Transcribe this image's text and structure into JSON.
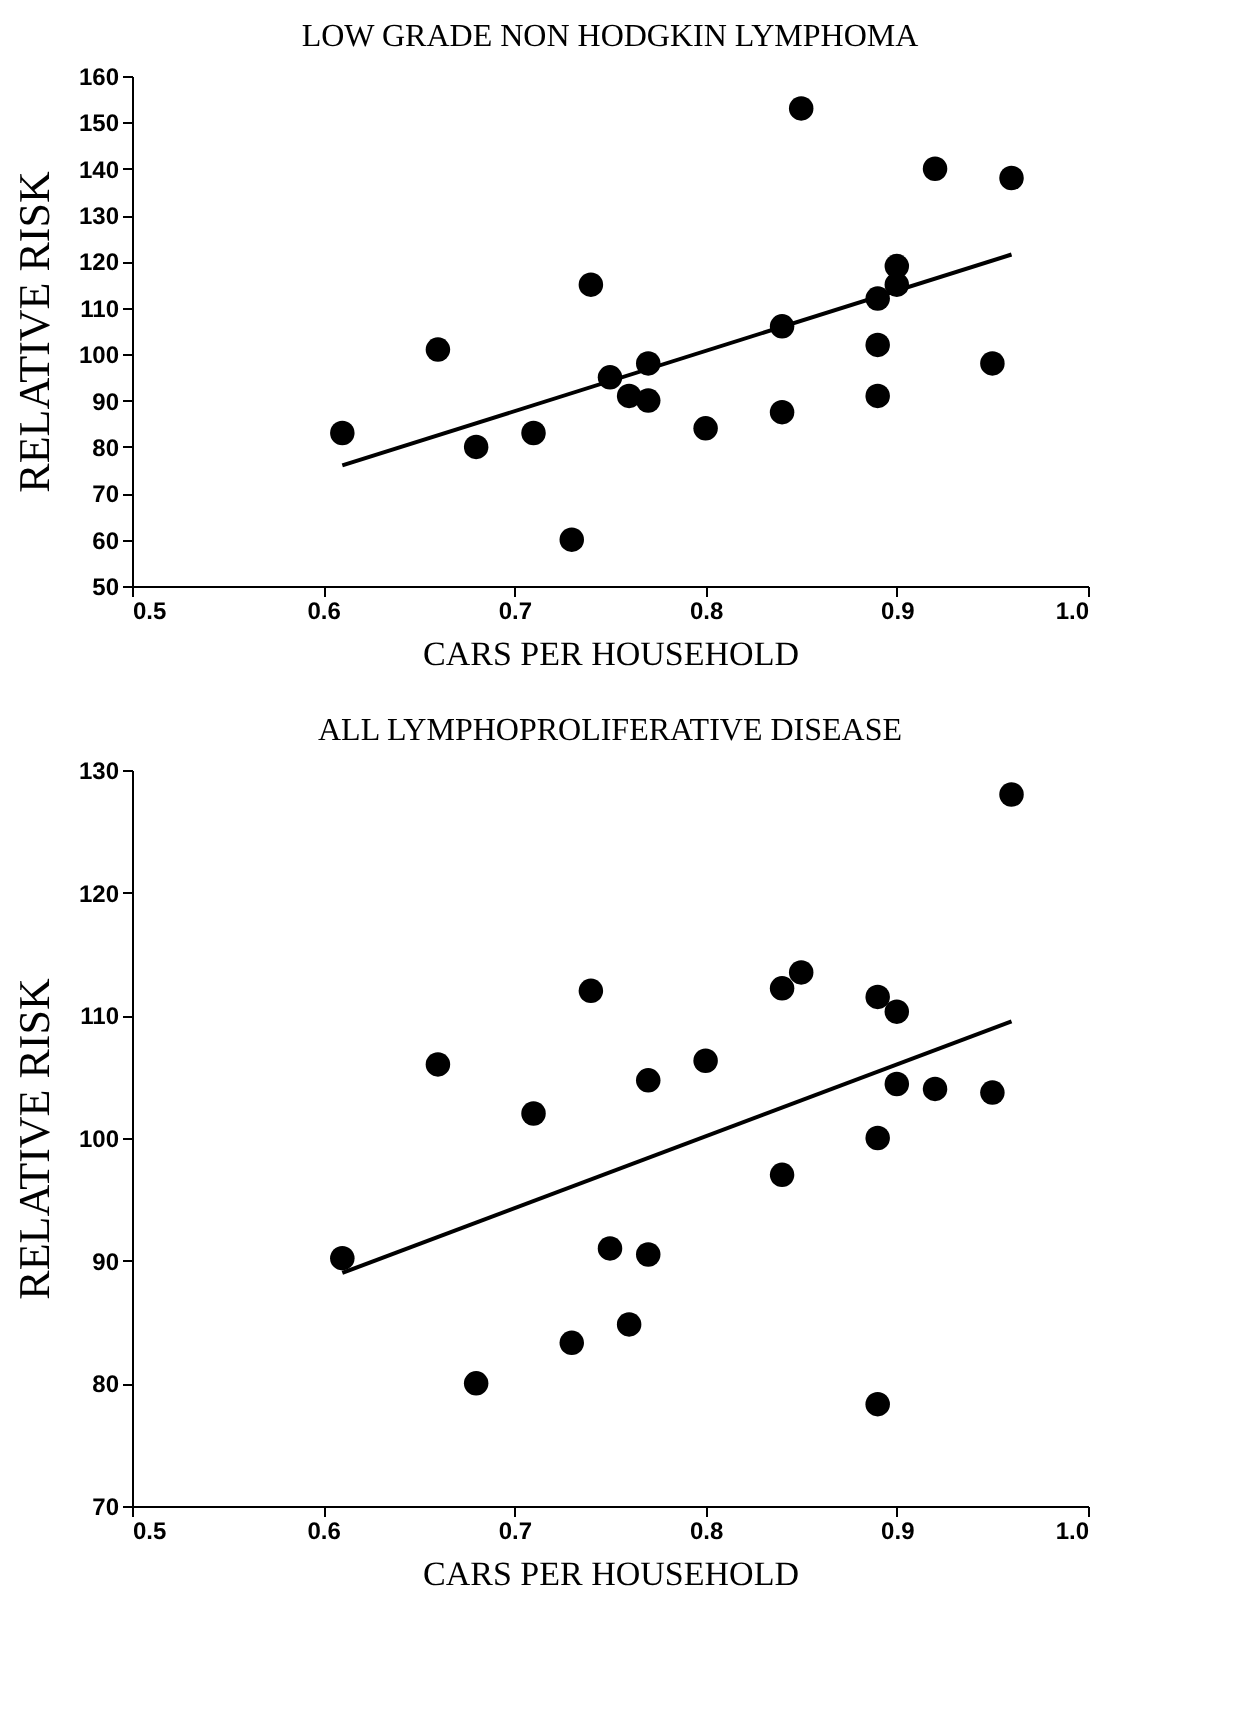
{
  "chart_data": [
    {
      "type": "scatter",
      "title": "LOW GRADE NON HODGKIN LYMPHOMA",
      "xlabel": "CARS PER HOUSEHOLD",
      "ylabel": "RELATIVE RISK",
      "xlim": [
        0.5,
        1.0
      ],
      "xticks": [
        0.5,
        0.6,
        0.7,
        0.8,
        0.9,
        {
          "value": 1.0,
          "label": "1.0"
        }
      ],
      "ylim": [
        50,
        160
      ],
      "yticks": [
        50,
        60,
        70,
        80,
        90,
        100,
        110,
        120,
        130,
        140,
        150,
        160
      ],
      "grid": false,
      "series": [
        {
          "marker": "circle",
          "color": "#000000",
          "x": [
            0.61,
            0.66,
            0.68,
            0.71,
            0.73,
            0.74,
            0.75,
            0.76,
            0.77,
            0.77,
            0.8,
            0.84,
            0.84,
            0.85,
            0.89,
            0.89,
            0.89,
            0.9,
            0.9,
            0.92,
            0.95,
            0.96
          ],
          "values": [
            83,
            101,
            80,
            83,
            60,
            115,
            95,
            91,
            98,
            90,
            84,
            87.5,
            106,
            153,
            112,
            102,
            91,
            119,
            115,
            140,
            98,
            138
          ]
        },
        {
          "type": "line",
          "marker": "none",
          "color": "#000000",
          "line_style": "solid",
          "x": [
            0.61,
            0.96
          ],
          "values": [
            76,
            121.5
          ]
        }
      ]
    },
    {
      "type": "scatter",
      "title": "ALL LYMPHOPROLIFERATIVE DISEASE",
      "xlabel": "CARS PER HOUSEHOLD",
      "ylabel": "RELATIVE RISK",
      "xlim": [
        0.5,
        1.0
      ],
      "xticks": [
        0.5,
        0.6,
        0.7,
        0.8,
        0.9,
        {
          "value": 1.0,
          "label": "1.0"
        }
      ],
      "ylim": [
        70,
        130
      ],
      "yticks": [
        70,
        80,
        90,
        100,
        110,
        120,
        130
      ],
      "grid": false,
      "series": [
        {
          "marker": "circle",
          "color": "#000000",
          "x": [
            0.61,
            0.66,
            0.68,
            0.71,
            0.73,
            0.74,
            0.75,
            0.76,
            0.77,
            0.77,
            0.8,
            0.84,
            0.84,
            0.85,
            0.89,
            0.89,
            0.89,
            0.9,
            0.9,
            0.92,
            0.95,
            0.96
          ],
          "values": [
            90.2,
            106,
            80,
            102,
            83.3,
            112,
            91,
            84.8,
            104.7,
            90.5,
            106.3,
            112.2,
            97,
            113.5,
            111.5,
            100,
            78.3,
            110.3,
            104.4,
            104,
            103.7,
            128
          ]
        },
        {
          "type": "line",
          "marker": "none",
          "color": "#000000",
          "line_style": "solid",
          "x": [
            0.61,
            0.96
          ],
          "values": [
            89,
            109.5
          ]
        }
      ]
    }
  ]
}
